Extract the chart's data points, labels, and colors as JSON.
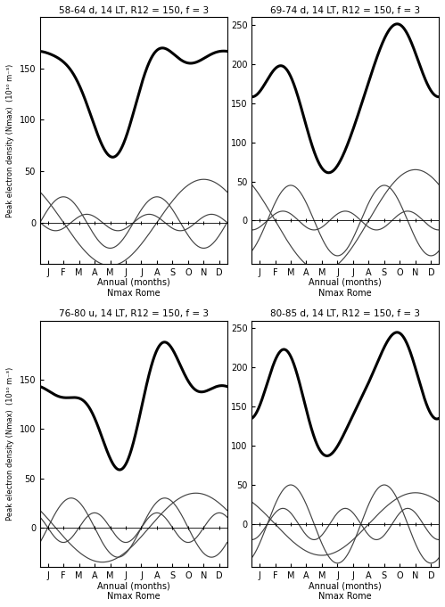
{
  "panels": [
    {
      "title": "58-64 d, 14 LT, R12 = 150, f = 3",
      "ylim": [
        -40,
        200
      ],
      "yticks": [
        0,
        50,
        100,
        150
      ],
      "mean": 137,
      "c1_amp": 42,
      "c1_phase_months": 10.5,
      "c2_amp": 25,
      "c2_phase_months": 7.5,
      "c3_amp": 8,
      "c3_phase_months": 7.0
    },
    {
      "title": "69-74 d, 14 LT, R12 = 150, f = 3",
      "ylim": [
        -55,
        260
      ],
      "yticks": [
        0,
        50,
        100,
        150,
        200,
        250
      ],
      "mean": 163,
      "c1_amp": 65,
      "c1_phase_months": 10.5,
      "c2_amp": 45,
      "c2_phase_months": 2.5,
      "c3_amp": 12,
      "c3_phase_months": 2.0
    },
    {
      "title": "76-80 u, 14 LT, R12 = 150, f = 3",
      "ylim": [
        -40,
        210
      ],
      "yticks": [
        0,
        50,
        100,
        150
      ],
      "mean": 130,
      "c1_amp": 35,
      "c1_phase_months": 10.0,
      "c2_amp": 30,
      "c2_phase_months": 8.0,
      "c3_amp": 15,
      "c3_phase_months": 7.5
    },
    {
      "title": "80-85 d, 14 LT, R12 = 150, f = 3",
      "ylim": [
        -55,
        260
      ],
      "yticks": [
        0,
        50,
        100,
        150,
        200,
        250
      ],
      "mean": 170,
      "c1_amp": 40,
      "c1_phase_months": 10.5,
      "c2_amp": 50,
      "c2_phase_months": 2.5,
      "c3_amp": 20,
      "c3_phase_months": 2.0
    }
  ],
  "month_labels": [
    "J",
    "F",
    "M",
    "A",
    "M",
    "J",
    "J",
    "A",
    "S",
    "O",
    "N",
    "D"
  ],
  "xlabel": "Annual (months)",
  "xlabel2": "Nmax Rome",
  "ylabel": "Peak electron density (Nmax)  (10¹⁰ m⁻³)",
  "background_color": "#ffffff",
  "line_color_thick": "#000000",
  "line_color_thin": "#444444",
  "figsize": [
    4.99,
    6.81
  ],
  "dpi": 100
}
